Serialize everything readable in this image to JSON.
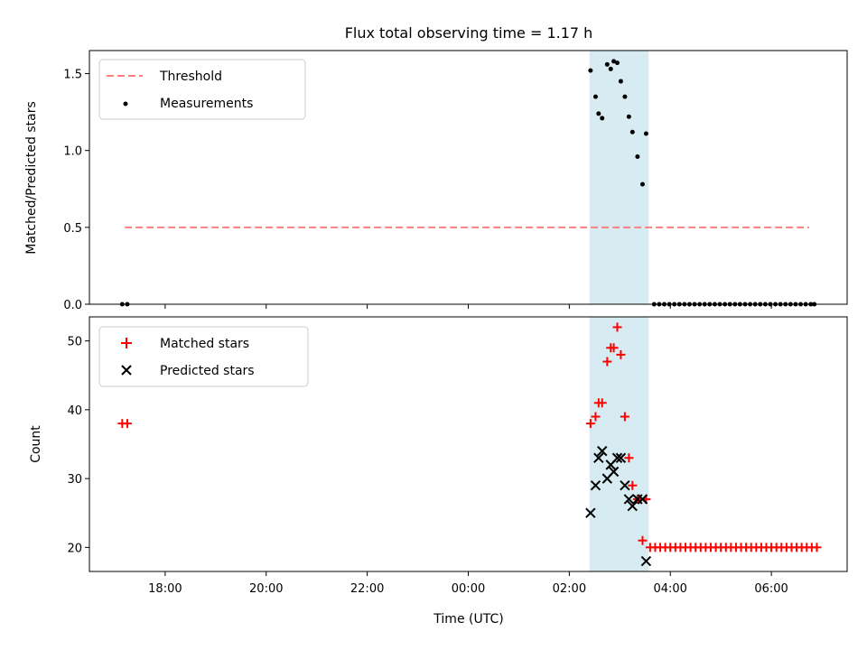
{
  "figure": {
    "title": "Flux total observing time = 1.17 h",
    "highlight_color": "#add8e6",
    "highlight_alpha": 0.5,
    "x_axis_label": "Time (UTC)",
    "x_tick_labels": [
      "18:00",
      "20:00",
      "22:00",
      "00:00",
      "02:00",
      "04:00",
      "06:00"
    ]
  },
  "chart_data": [
    {
      "type": "scatter",
      "panel": "top",
      "ylabel": "Matched/Predicted stars",
      "xlim_hours": [
        16.5,
        31.5
      ],
      "ylim": [
        0,
        1.65
      ],
      "y_ticks": [
        "0.0",
        "0.5",
        "1.0",
        "1.5"
      ],
      "highlight_span_hours": [
        26.4,
        27.57
      ],
      "legend": {
        "placement": "upper-left",
        "entries": [
          "Threshold",
          "Measurements"
        ]
      },
      "threshold": {
        "name": "Threshold",
        "value": 0.5,
        "x_range_hours": [
          17.2,
          30.75
        ],
        "color": "#ff7f7f"
      },
      "series": [
        {
          "name": "Measurements",
          "color": "#000000",
          "points": [
            [
              17.15,
              0
            ],
            [
              17.25,
              0
            ],
            [
              26.42,
              1.52
            ],
            [
              26.52,
              1.35
            ],
            [
              26.58,
              1.24
            ],
            [
              26.65,
              1.21
            ],
            [
              26.75,
              1.56
            ],
            [
              26.82,
              1.53
            ],
            [
              26.88,
              1.58
            ],
            [
              26.95,
              1.57
            ],
            [
              27.02,
              1.45
            ],
            [
              27.1,
              1.35
            ],
            [
              27.18,
              1.22
            ],
            [
              27.25,
              1.12
            ],
            [
              27.35,
              0.96
            ],
            [
              27.45,
              0.78
            ],
            [
              27.52,
              1.11
            ],
            [
              27.68,
              0
            ],
            [
              27.78,
              0
            ],
            [
              27.88,
              0
            ],
            [
              27.98,
              0
            ],
            [
              28.08,
              0
            ],
            [
              28.18,
              0
            ],
            [
              28.28,
              0
            ],
            [
              28.38,
              0
            ],
            [
              28.48,
              0
            ],
            [
              28.58,
              0
            ],
            [
              28.68,
              0
            ],
            [
              28.78,
              0
            ],
            [
              28.88,
              0
            ],
            [
              28.98,
              0
            ],
            [
              29.08,
              0
            ],
            [
              29.18,
              0
            ],
            [
              29.28,
              0
            ],
            [
              29.38,
              0
            ],
            [
              29.48,
              0
            ],
            [
              29.58,
              0
            ],
            [
              29.68,
              0
            ],
            [
              29.78,
              0
            ],
            [
              29.88,
              0
            ],
            [
              29.98,
              0
            ],
            [
              30.08,
              0
            ],
            [
              30.18,
              0
            ],
            [
              30.28,
              0
            ],
            [
              30.38,
              0
            ],
            [
              30.48,
              0
            ],
            [
              30.58,
              0
            ],
            [
              30.68,
              0
            ],
            [
              30.78,
              0
            ],
            [
              30.85,
              0
            ]
          ]
        }
      ]
    },
    {
      "type": "scatter",
      "panel": "bottom",
      "ylabel": "Count",
      "xlim_hours": [
        16.5,
        31.5
      ],
      "ylim": [
        16.5,
        53.5
      ],
      "y_ticks": [
        "20",
        "30",
        "40",
        "50"
      ],
      "highlight_span_hours": [
        26.4,
        27.57
      ],
      "legend": {
        "placement": "upper-left",
        "entries": [
          "Matched stars",
          "Predicted stars"
        ]
      },
      "series": [
        {
          "name": "Matched stars",
          "color": "#ff0000",
          "marker": "plus",
          "points": [
            [
              17.15,
              38
            ],
            [
              17.25,
              38
            ],
            [
              26.42,
              38
            ],
            [
              26.52,
              39
            ],
            [
              26.58,
              41
            ],
            [
              26.65,
              41
            ],
            [
              26.75,
              47
            ],
            [
              26.82,
              49
            ],
            [
              26.88,
              49
            ],
            [
              26.95,
              52
            ],
            [
              27.02,
              48
            ],
            [
              27.1,
              39
            ],
            [
              27.18,
              33
            ],
            [
              27.25,
              29
            ],
            [
              27.35,
              27
            ],
            [
              27.45,
              21
            ],
            [
              27.52,
              27
            ],
            [
              27.6,
              20
            ],
            [
              27.7,
              20
            ],
            [
              27.8,
              20
            ],
            [
              27.9,
              20
            ],
            [
              28.0,
              20
            ],
            [
              28.1,
              20
            ],
            [
              28.2,
              20
            ],
            [
              28.3,
              20
            ],
            [
              28.4,
              20
            ],
            [
              28.5,
              20
            ],
            [
              28.6,
              20
            ],
            [
              28.7,
              20
            ],
            [
              28.8,
              20
            ],
            [
              28.9,
              20
            ],
            [
              29.0,
              20
            ],
            [
              29.1,
              20
            ],
            [
              29.2,
              20
            ],
            [
              29.3,
              20
            ],
            [
              29.4,
              20
            ],
            [
              29.5,
              20
            ],
            [
              29.6,
              20
            ],
            [
              29.7,
              20
            ],
            [
              29.8,
              20
            ],
            [
              29.9,
              20
            ],
            [
              30.0,
              20
            ],
            [
              30.1,
              20
            ],
            [
              30.2,
              20
            ],
            [
              30.3,
              20
            ],
            [
              30.4,
              20
            ],
            [
              30.5,
              20
            ],
            [
              30.6,
              20
            ],
            [
              30.7,
              20
            ],
            [
              30.8,
              20
            ],
            [
              30.9,
              20
            ]
          ]
        },
        {
          "name": "Predicted stars",
          "color": "#000000",
          "marker": "x",
          "points": [
            [
              26.42,
              25
            ],
            [
              26.52,
              29
            ],
            [
              26.58,
              33
            ],
            [
              26.65,
              34
            ],
            [
              26.75,
              30
            ],
            [
              26.82,
              32
            ],
            [
              26.88,
              31
            ],
            [
              26.95,
              33
            ],
            [
              27.02,
              33
            ],
            [
              27.1,
              29
            ],
            [
              27.18,
              27
            ],
            [
              27.25,
              26
            ],
            [
              27.35,
              27
            ],
            [
              27.45,
              27
            ],
            [
              27.52,
              18
            ]
          ]
        }
      ]
    }
  ]
}
